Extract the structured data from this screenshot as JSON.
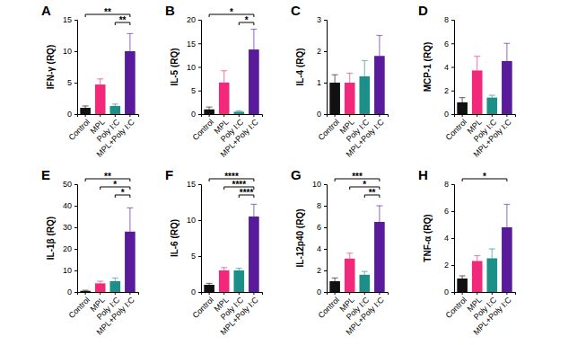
{
  "chart_data": [
    {
      "type": "bar",
      "title": "A",
      "y_label": "IFN-γ (RQ)",
      "categories": [
        "Control",
        "MPL",
        "Poly I:C",
        "MPL+Poly I:C"
      ],
      "values": [
        1,
        4.7,
        1.3,
        10
      ],
      "errors": [
        0.3,
        0.9,
        0.3,
        2.8
      ],
      "colors": [
        "#111111",
        "#f2287a",
        "#1b8f88",
        "#5a1a9c"
      ],
      "ylim": [
        0,
        15
      ],
      "yticks": [
        0,
        5,
        10,
        15
      ],
      "comparisons": [
        {
          "groups": [
            "Control",
            "MPL+Poly I:C"
          ],
          "label": "**"
        },
        {
          "groups": [
            "Poly I:C",
            "MPL+Poly I:C"
          ],
          "label": "**"
        }
      ]
    },
    {
      "type": "bar",
      "title": "B",
      "y_label": "IL-5 (RQ)",
      "categories": [
        "Control",
        "MPL",
        "Poly I:C",
        "MPL+Poly I:C"
      ],
      "values": [
        1,
        6.7,
        0.5,
        13.7
      ],
      "errors": [
        0.5,
        2.5,
        0.2,
        4.3
      ],
      "colors": [
        "#111111",
        "#f2287a",
        "#1b8f88",
        "#5a1a9c"
      ],
      "ylim": [
        0,
        20
      ],
      "yticks": [
        0,
        5,
        10,
        15,
        20
      ],
      "comparisons": [
        {
          "groups": [
            "Control",
            "MPL+Poly I:C"
          ],
          "label": "*"
        },
        {
          "groups": [
            "Poly I:C",
            "MPL+Poly I:C"
          ],
          "label": "*"
        }
      ]
    },
    {
      "type": "bar",
      "title": "C",
      "y_label": "IL-4 (RQ)",
      "categories": [
        "Control",
        "MPL",
        "Poly I:C",
        "MPL+Poly I:C"
      ],
      "values": [
        1,
        1,
        1.2,
        1.85
      ],
      "errors": [
        0.25,
        0.3,
        0.5,
        0.65
      ],
      "colors": [
        "#111111",
        "#f2287a",
        "#1b8f88",
        "#5a1a9c"
      ],
      "ylim": [
        0,
        3
      ],
      "yticks": [
        0,
        1,
        2,
        3
      ],
      "comparisons": []
    },
    {
      "type": "bar",
      "title": "D",
      "y_label": "MCP-1 (RQ)",
      "categories": [
        "Control",
        "MPL",
        "Poly I:C",
        "MPL+Poly I:C"
      ],
      "values": [
        1,
        3.7,
        1.4,
        4.5
      ],
      "errors": [
        0.4,
        1.2,
        0.2,
        1.5
      ],
      "colors": [
        "#111111",
        "#f2287a",
        "#1b8f88",
        "#5a1a9c"
      ],
      "ylim": [
        0,
        8
      ],
      "yticks": [
        0,
        2,
        4,
        6,
        8
      ],
      "comparisons": []
    },
    {
      "type": "bar",
      "title": "E",
      "y_label": "IL-1β (RQ)",
      "categories": [
        "Control",
        "MPL",
        "Poly I:C",
        "MPL+Poly I:C"
      ],
      "values": [
        0.5,
        4,
        5,
        28
      ],
      "errors": [
        0.3,
        1,
        1.5,
        11
      ],
      "colors": [
        "#111111",
        "#f2287a",
        "#1b8f88",
        "#5a1a9c"
      ],
      "ylim": [
        0,
        50
      ],
      "yticks": [
        0,
        10,
        20,
        30,
        40,
        50
      ],
      "comparisons": [
        {
          "groups": [
            "Control",
            "MPL+Poly I:C"
          ],
          "label": "**"
        },
        {
          "groups": [
            "MPL",
            "MPL+Poly I:C"
          ],
          "label": "*"
        },
        {
          "groups": [
            "Poly I:C",
            "MPL+Poly I:C"
          ],
          "label": "*"
        }
      ]
    },
    {
      "type": "bar",
      "title": "F",
      "y_label": "IL-6 (RQ)",
      "categories": [
        "Control",
        "MPL",
        "Poly I:C",
        "MPL+Poly I:C"
      ],
      "values": [
        1,
        3,
        3,
        10.5
      ],
      "errors": [
        0.2,
        0.4,
        0.3,
        1.7
      ],
      "colors": [
        "#111111",
        "#f2287a",
        "#1b8f88",
        "#5a1a9c"
      ],
      "ylim": [
        0,
        15
      ],
      "yticks": [
        0,
        5,
        10,
        15
      ],
      "comparisons": [
        {
          "groups": [
            "Control",
            "MPL+Poly I:C"
          ],
          "label": "****"
        },
        {
          "groups": [
            "MPL",
            "MPL+Poly I:C"
          ],
          "label": "****"
        },
        {
          "groups": [
            "Poly I:C",
            "MPL+Poly I:C"
          ],
          "label": "****"
        }
      ]
    },
    {
      "type": "bar",
      "title": "G",
      "y_label": "IL-12p40 (RQ)",
      "categories": [
        "Control",
        "MPL",
        "Poly I:C",
        "MPL+Poly I:C"
      ],
      "values": [
        1,
        3.1,
        1.6,
        6.5
      ],
      "errors": [
        0.3,
        0.5,
        0.3,
        1.5
      ],
      "colors": [
        "#111111",
        "#f2287a",
        "#1b8f88",
        "#5a1a9c"
      ],
      "ylim": [
        0,
        10
      ],
      "yticks": [
        0,
        2,
        4,
        6,
        8,
        10
      ],
      "comparisons": [
        {
          "groups": [
            "Control",
            "MPL+Poly I:C"
          ],
          "label": "***"
        },
        {
          "groups": [
            "MPL",
            "MPL+Poly I:C"
          ],
          "label": "*"
        },
        {
          "groups": [
            "Poly I:C",
            "MPL+Poly I:C"
          ],
          "label": "**"
        }
      ]
    },
    {
      "type": "bar",
      "title": "H",
      "y_label": "TNF-α (RQ)",
      "categories": [
        "Control",
        "MPL",
        "Poly I:C",
        "MPL+Poly I:C"
      ],
      "values": [
        1,
        2.3,
        2.5,
        4.8
      ],
      "errors": [
        0.2,
        0.4,
        0.7,
        1.7
      ],
      "colors": [
        "#111111",
        "#f2287a",
        "#1b8f88",
        "#5a1a9c"
      ],
      "ylim": [
        0,
        8
      ],
      "yticks": [
        0,
        2,
        4,
        6,
        8
      ],
      "comparisons": [
        {
          "groups": [
            "Control",
            "MPL+Poly I:C"
          ],
          "label": "*"
        }
      ]
    }
  ]
}
